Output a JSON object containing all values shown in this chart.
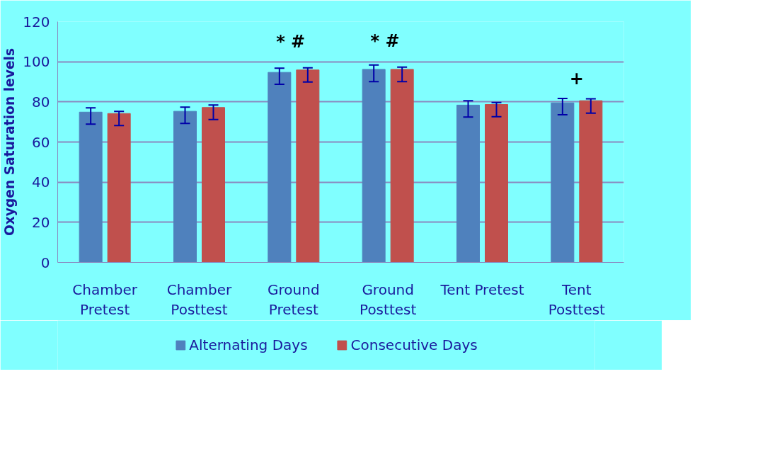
{
  "chart_data": {
    "type": "bar",
    "ylabel": "Oxygen Saturation levels",
    "categories": [
      "Chamber Pretest",
      "Chamber Posttest",
      "Ground Pretest",
      "Ground Posttest",
      "Tent Pretest",
      "Tent Posttest"
    ],
    "series": [
      {
        "name": "Alternating Days",
        "color": "#4f81bd",
        "values": [
          74.9,
          75.3,
          94.7,
          96.2,
          78.4,
          79.5
        ],
        "errors": [
          [
            68.9,
            77.0
          ],
          [
            69.3,
            77.4
          ],
          [
            88.8,
            96.8
          ],
          [
            90.1,
            98.4
          ],
          [
            72.4,
            80.6
          ],
          [
            73.6,
            81.7
          ]
        ]
      },
      {
        "name": "Consecutive Days",
        "color": "#c0504d",
        "values": [
          74.2,
          77.2,
          95.9,
          96.2,
          78.7,
          80.6
        ],
        "errors": [
          [
            68.2,
            75.3
          ],
          [
            71.2,
            78.4
          ],
          [
            89.9,
            97.0
          ],
          [
            90.1,
            97.3
          ],
          [
            72.6,
            79.7
          ],
          [
            74.4,
            81.5
          ]
        ]
      }
    ],
    "ylim": [
      0,
      120
    ],
    "yticks": [
      0,
      20,
      40,
      60,
      80,
      100,
      120
    ],
    "grid": "y",
    "legend": "bottom",
    "annotations": [
      {
        "text": "*  #",
        "x": "Ground Pretest",
        "y": 95.9
      },
      {
        "text": "*  #",
        "x": "Ground Posttest",
        "y": 96.2
      },
      {
        "text": "+",
        "x": "Tent Posttest",
        "y": 79.5
      }
    ]
  }
}
